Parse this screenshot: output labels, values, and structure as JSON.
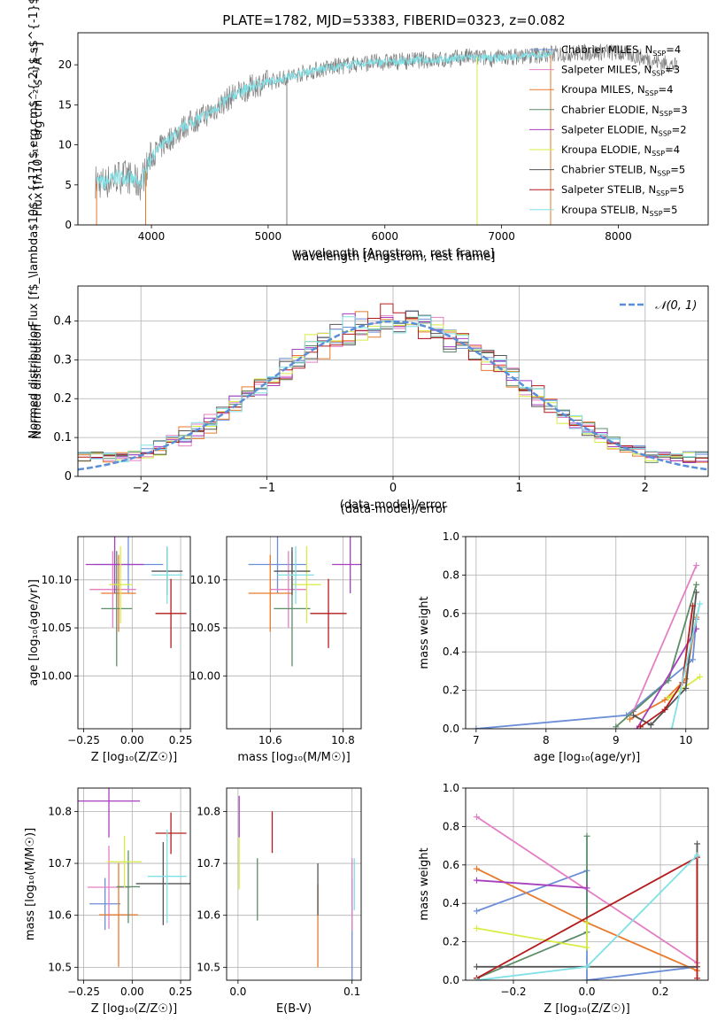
{
  "chart_data": [
    {
      "id": "spectrum",
      "type": "line",
      "title": "PLATE=1782, MJD=53383, FIBERID=0323, z=0.082",
      "xlabel": "wavelength [Angstrom, rest frame]",
      "ylabel": "Flux [f$_\\lambda$10$^{-17}$ erg cm$^{-2}$ s$^{-1}$ A$^{-1}$]",
      "ylabel_text": "Flux [fλ10⁻¹⁷ erg cm⁻² s⁻¹ A⁻¹]",
      "xlim": [
        3370,
        8770
      ],
      "ylim": [
        0,
        24
      ],
      "xticks": [
        4000,
        5000,
        6000,
        7000,
        8000
      ],
      "yticks": [
        0,
        5,
        10,
        15,
        20
      ],
      "legend_position": "right",
      "series": [
        {
          "name": "Chabrier MILES, N$_{SSP}$=4",
          "label": "Chabrier MILES, N",
          "nssp": "=4",
          "color": "#6c8ed8"
        },
        {
          "name": "Salpeter MILES, N$_{SSP}$=3",
          "label": "Salpeter MILES, N",
          "nssp": "=3",
          "color": "#e47fc4"
        },
        {
          "name": "Kroupa MILES, N$_{SSP}$=4",
          "label": "Kroupa MILES, N",
          "nssp": "=4",
          "color": "#e87a2c"
        },
        {
          "name": "Chabrier ELODIE, N$_{SSP}$=3",
          "label": "Chabrier ELODIE, N",
          "nssp": "=3",
          "color": "#5d8c69"
        },
        {
          "name": "Salpeter ELODIE, N$_{SSP}$=2",
          "label": "Salpeter ELODIE, N",
          "nssp": "=2",
          "color": "#a63fc0"
        },
        {
          "name": "Kroupa ELODIE, N$_{SSP}$=4",
          "label": "Kroupa ELODIE, N",
          "nssp": "=4",
          "color": "#d8ec44"
        },
        {
          "name": "Chabrier STELIB, N$_{SSP}$=5",
          "label": "Chabrier STELIB, N",
          "nssp": "=5",
          "color": "#555555"
        },
        {
          "name": "Salpeter STELIB, N$_{SSP}$=5",
          "label": "Salpeter STELIB, N",
          "nssp": "=5",
          "color": "#b31c1c"
        },
        {
          "name": "Kroupa STELIB, N$_{SSP}$=5",
          "label": "Kroupa STELIB, N",
          "nssp": "=5",
          "color": "#7fe0e6"
        }
      ],
      "legend_subscript": "SSP",
      "data_color": "#808080",
      "model_color": "#7fe0e6",
      "continuum": {
        "x": [
          3520,
          3600,
          3700,
          3800,
          3900,
          4000,
          4100,
          4300,
          4500,
          4700,
          4900,
          5100,
          5300,
          5500,
          5700,
          5900,
          6100,
          6300,
          6500,
          6700,
          6900,
          7100,
          7300,
          7500,
          7700,
          7900,
          8100,
          8300,
          8500
        ],
        "y": [
          5.5,
          5.2,
          6.0,
          6.0,
          5.0,
          8.5,
          10.0,
          12.5,
          14.0,
          16.2,
          17.5,
          18.2,
          19.0,
          19.6,
          20.0,
          20.3,
          20.4,
          20.6,
          20.6,
          21.0,
          20.8,
          21.0,
          21.2,
          21.4,
          21.5,
          21.6,
          21.3,
          20.5,
          19.8
        ]
      },
      "model_range": [
        3530,
        7440
      ],
      "data_range": [
        3520,
        8500
      ],
      "drops": [
        {
          "x": 3530,
          "color": "#e87a2c"
        },
        {
          "x": 3950,
          "color": "#e87a2c"
        },
        {
          "x": 5160,
          "color": "#808080"
        },
        {
          "x": 6790,
          "color": "#d8ec44"
        },
        {
          "x": 7420,
          "color": "#e87a2c"
        }
      ]
    },
    {
      "id": "residuals",
      "type": "histogram",
      "xlabel": "(data-model)/error",
      "ylabel": "Normed distribution",
      "xlim": [
        -2.5,
        2.5
      ],
      "ylim": [
        0,
        0.49
      ],
      "xticks": [
        -2,
        -1,
        0,
        1,
        2
      ],
      "yticks": [
        0.0,
        0.1,
        0.2,
        0.3,
        0.4
      ],
      "bin_width": 0.1,
      "reference": {
        "label": "$\\mathcal{N}(0,1)$",
        "label_text": "𝒩(0, 1)",
        "color": "#5b8ed8"
      },
      "legend_position": "top-right",
      "grid": true
    },
    {
      "id": "age_vs_Z",
      "type": "errorbar",
      "xlabel": "Z [log₁₀(Z/Z☉)]",
      "ylabel": "age  [log₁₀(age/yr)]",
      "xlim": [
        -0.28,
        0.3
      ],
      "ylim": [
        9.945,
        10.145
      ],
      "xticks": [
        -0.25,
        0.0,
        0.25
      ],
      "xticklabels": [
        "−0.25",
        "0.00",
        "0.25"
      ],
      "yticks": [
        10.0,
        10.05,
        10.1
      ],
      "yticklabels": [
        "10.00",
        "10.05",
        "10.10"
      ],
      "points": [
        {
          "x": -0.02,
          "xerr": 0.18,
          "y": 10.116,
          "yerr": 0.03,
          "color": "#6c8ed8"
        },
        {
          "x": -0.1,
          "xerr": 0.12,
          "y": 10.09,
          "yerr": 0.04,
          "color": "#e47fc4"
        },
        {
          "x": -0.07,
          "xerr": 0.09,
          "y": 10.086,
          "yerr": 0.04,
          "color": "#e87a2c"
        },
        {
          "x": -0.08,
          "xerr": 0.08,
          "y": 10.07,
          "yerr": 0.06,
          "color": "#5d8c69"
        },
        {
          "x": -0.09,
          "xerr": 0.15,
          "y": 10.116,
          "yerr": 0.03,
          "color": "#a63fc0"
        },
        {
          "x": -0.06,
          "xerr": 0.06,
          "y": 10.095,
          "yerr": 0.04,
          "color": "#d8ec44"
        },
        {
          "x": 0.18,
          "xerr": 0.08,
          "y": 10.109,
          "yerr": 0.025,
          "color": "#555555"
        },
        {
          "x": 0.2,
          "xerr": 0.08,
          "y": 10.065,
          "yerr": 0.036,
          "color": "#b31c1c"
        },
        {
          "x": 0.18,
          "xerr": 0.08,
          "y": 10.105,
          "yerr": 0.03,
          "color": "#7fe0e6"
        }
      ]
    },
    {
      "id": "age_vs_mass",
      "type": "errorbar",
      "xlabel": "mass [log₁₀(M/M☉)]",
      "ylabel": "",
      "xlim": [
        10.48,
        10.85
      ],
      "ylim": [
        9.945,
        10.145
      ],
      "xticks": [
        10.6,
        10.8
      ],
      "xticklabels": [
        "10.6",
        "10.8"
      ],
      "yticks": [
        10.0,
        10.05,
        10.1
      ],
      "yticklabels": [
        "10.00",
        "10.05",
        "10.10"
      ],
      "points": [
        {
          "x": 10.62,
          "xerr": 0.08,
          "y": 10.116,
          "yerr": 0.03,
          "color": "#6c8ed8"
        },
        {
          "x": 10.65,
          "xerr": 0.05,
          "y": 10.09,
          "yerr": 0.04,
          "color": "#e47fc4"
        },
        {
          "x": 10.6,
          "xerr": 0.06,
          "y": 10.086,
          "yerr": 0.04,
          "color": "#e87a2c"
        },
        {
          "x": 10.66,
          "xerr": 0.05,
          "y": 10.07,
          "yerr": 0.06,
          "color": "#5d8c69"
        },
        {
          "x": 10.82,
          "xerr": 0.05,
          "y": 10.116,
          "yerr": 0.03,
          "color": "#a63fc0"
        },
        {
          "x": 10.7,
          "xerr": 0.04,
          "y": 10.095,
          "yerr": 0.04,
          "color": "#d8ec44"
        },
        {
          "x": 10.66,
          "xerr": 0.05,
          "y": 10.109,
          "yerr": 0.025,
          "color": "#555555"
        },
        {
          "x": 10.76,
          "xerr": 0.05,
          "y": 10.065,
          "yerr": 0.036,
          "color": "#b31c1c"
        },
        {
          "x": 10.67,
          "xerr": 0.05,
          "y": 10.105,
          "yerr": 0.03,
          "color": "#7fe0e6"
        }
      ]
    },
    {
      "id": "weight_vs_age",
      "type": "line",
      "xlabel": "age  [log₁₀(age/yr)]",
      "ylabel": "mass weight",
      "xlim": [
        6.85,
        10.32
      ],
      "ylim": [
        0,
        1.0
      ],
      "xticks": [
        7,
        8,
        9,
        10
      ],
      "yticks": [
        0.0,
        0.2,
        0.4,
        0.6,
        0.8,
        1.0
      ],
      "yticklabels": [
        "0.0",
        "0.2",
        "0.4",
        "0.6",
        "0.8",
        "1.0"
      ],
      "series": [
        {
          "color": "#6c8ed8",
          "x": [
            7.0,
            9.15,
            10.1,
            10.15
          ],
          "y": [
            0.0,
            0.07,
            0.36,
            0.57
          ]
        },
        {
          "color": "#e47fc4",
          "x": [
            9.25,
            10.15
          ],
          "y": [
            0.09,
            0.85
          ]
        },
        {
          "color": "#e87a2c",
          "x": [
            9.2,
            9.7,
            10.0,
            10.15
          ],
          "y": [
            0.05,
            0.15,
            0.26,
            0.58
          ]
        },
        {
          "color": "#5d8c69",
          "x": [
            9.0,
            9.75,
            10.15
          ],
          "y": [
            0.01,
            0.25,
            0.75
          ]
        },
        {
          "color": "#a63fc0",
          "x": [
            9.3,
            10.15
          ],
          "y": [
            0.0,
            0.52
          ]
        },
        {
          "color": "#d8ec44",
          "x": [
            9.75,
            10.2
          ],
          "y": [
            0.16,
            0.27
          ]
        },
        {
          "color": "#555555",
          "x": [
            9.25,
            9.5,
            10.0,
            10.15
          ],
          "y": [
            0.07,
            0.02,
            0.21,
            0.71
          ]
        },
        {
          "color": "#b31c1c",
          "x": [
            9.35,
            9.7,
            9.95,
            10.1
          ],
          "y": [
            0.01,
            0.1,
            0.24,
            0.64
          ]
        },
        {
          "color": "#7fe0e6",
          "x": [
            9.8,
            10.2
          ],
          "y": [
            0.0,
            0.65
          ]
        }
      ]
    },
    {
      "id": "mass_vs_Z",
      "type": "errorbar",
      "xlabel": "Z [log₁₀(Z/Z☉)]",
      "ylabel": "mass [log₁₀(M/M☉)]",
      "xlim": [
        -0.28,
        0.3
      ],
      "ylim": [
        10.475,
        10.845
      ],
      "xticks": [
        -0.25,
        0.0,
        0.25
      ],
      "xticklabels": [
        "−0.25",
        "0.00",
        "0.25"
      ],
      "yticks": [
        10.5,
        10.6,
        10.7,
        10.8
      ],
      "yticklabels": [
        "10.5",
        "10.6",
        "10.7",
        "10.8"
      ],
      "points": [
        {
          "x": -0.14,
          "xerr": 0.08,
          "y": 10.622,
          "yerr": 0.05,
          "color": "#6c8ed8"
        },
        {
          "x": -0.12,
          "xerr": 0.11,
          "y": 10.654,
          "yerr": 0.08,
          "color": "#e47fc4"
        },
        {
          "x": -0.07,
          "xerr": 0.1,
          "y": 10.601,
          "yerr": 0.1,
          "color": "#e87a2c"
        },
        {
          "x": -0.02,
          "xerr": 0.06,
          "y": 10.655,
          "yerr": 0.07,
          "color": "#5d8c69"
        },
        {
          "x": -0.12,
          "xerr": 0.16,
          "y": 10.82,
          "yerr": 0.07,
          "color": "#a63fc0"
        },
        {
          "x": -0.04,
          "xerr": 0.09,
          "y": 10.703,
          "yerr": 0.05,
          "color": "#d8ec44"
        },
        {
          "x": 0.16,
          "xerr": 0.14,
          "y": 10.661,
          "yerr": 0.08,
          "color": "#555555"
        },
        {
          "x": 0.2,
          "xerr": 0.08,
          "y": 10.758,
          "yerr": 0.04,
          "color": "#b31c1c"
        },
        {
          "x": 0.18,
          "xerr": 0.1,
          "y": 10.675,
          "yerr": 0.09,
          "color": "#7fe0e6"
        }
      ]
    },
    {
      "id": "mass_vs_ebv",
      "type": "errorbar",
      "xlabel": "E(B-V)",
      "ylabel": "",
      "xlim": [
        -0.01,
        0.108
      ],
      "ylim": [
        10.475,
        10.845
      ],
      "xticks": [
        0.0,
        0.1
      ],
      "xticklabels": [
        "0.0",
        "0.1"
      ],
      "yticks": [
        10.5,
        10.6,
        10.7,
        10.8
      ],
      "yticklabels": [
        "10.5",
        "10.6",
        "10.7",
        "10.8"
      ],
      "points": [
        {
          "x": 0.1,
          "y": 10.57,
          "yerr": 0.1,
          "color": "#6c8ed8"
        },
        {
          "x": 0.1,
          "y": 10.64,
          "yerr": 0.07,
          "color": "#e47fc4"
        },
        {
          "x": 0.07,
          "y": 10.58,
          "yerr": 0.08,
          "color": "#e87a2c"
        },
        {
          "x": 0.017,
          "y": 10.65,
          "yerr": 0.06,
          "color": "#5d8c69"
        },
        {
          "x": 0.001,
          "y": 10.79,
          "yerr": 0.04,
          "color": "#a63fc0"
        },
        {
          "x": 0.001,
          "y": 10.7,
          "yerr": 0.05,
          "color": "#d8ec44"
        },
        {
          "x": 0.07,
          "y": 10.65,
          "yerr": 0.05,
          "color": "#555555"
        },
        {
          "x": 0.03,
          "y": 10.76,
          "yerr": 0.04,
          "color": "#b31c1c"
        },
        {
          "x": 0.102,
          "y": 10.66,
          "yerr": 0.05,
          "color": "#7fe0e6"
        }
      ]
    },
    {
      "id": "weight_vs_Z",
      "type": "line",
      "xlabel": "Z [log₁₀(Z/Z☉)]",
      "ylabel": "mass weight",
      "xlim": [
        -0.33,
        0.33
      ],
      "ylim": [
        0,
        1.0
      ],
      "xticks": [
        -0.2,
        0.0,
        0.2
      ],
      "xticklabels": [
        "−0.2",
        "0.0",
        "0.2"
      ],
      "yticks": [
        0.0,
        0.2,
        0.4,
        0.6,
        0.8,
        1.0
      ],
      "yticklabels": [
        "0.0",
        "0.2",
        "0.4",
        "0.6",
        "0.8",
        "1.0"
      ],
      "series": [
        {
          "color": "#6c8ed8",
          "x": [
            -0.3,
            0.0,
            0.0,
            0.3
          ],
          "y": [
            0.36,
            0.57,
            0.0,
            0.07
          ]
        },
        {
          "color": "#e47fc4",
          "x": [
            -0.3,
            0.3
          ],
          "y": [
            0.85,
            0.09
          ]
        },
        {
          "color": "#e87a2c",
          "x": [
            -0.3,
            0.0,
            0.3
          ],
          "y": [
            0.58,
            0.3,
            0.05
          ]
        },
        {
          "color": "#5d8c69",
          "x": [
            -0.3,
            0.0,
            0.0
          ],
          "y": [
            0.01,
            0.25,
            0.75
          ]
        },
        {
          "color": "#a63fc0",
          "x": [
            -0.3,
            0.0
          ],
          "y": [
            0.52,
            0.48
          ]
        },
        {
          "color": "#d8ec44",
          "x": [
            -0.3,
            0.0,
            0.0
          ],
          "y": [
            0.27,
            0.17,
            0.3
          ]
        },
        {
          "color": "#555555",
          "x": [
            -0.3,
            0.0,
            0.3,
            0.3
          ],
          "y": [
            0.07,
            0.07,
            0.07,
            0.71
          ]
        },
        {
          "color": "#b31c1c",
          "x": [
            -0.3,
            0.3,
            0.3
          ],
          "y": [
            0.01,
            0.64,
            0.01
          ]
        },
        {
          "color": "#7fe0e6",
          "x": [
            -0.3,
            0.0,
            0.3
          ],
          "y": [
            0.0,
            0.07,
            0.65
          ]
        }
      ]
    }
  ]
}
